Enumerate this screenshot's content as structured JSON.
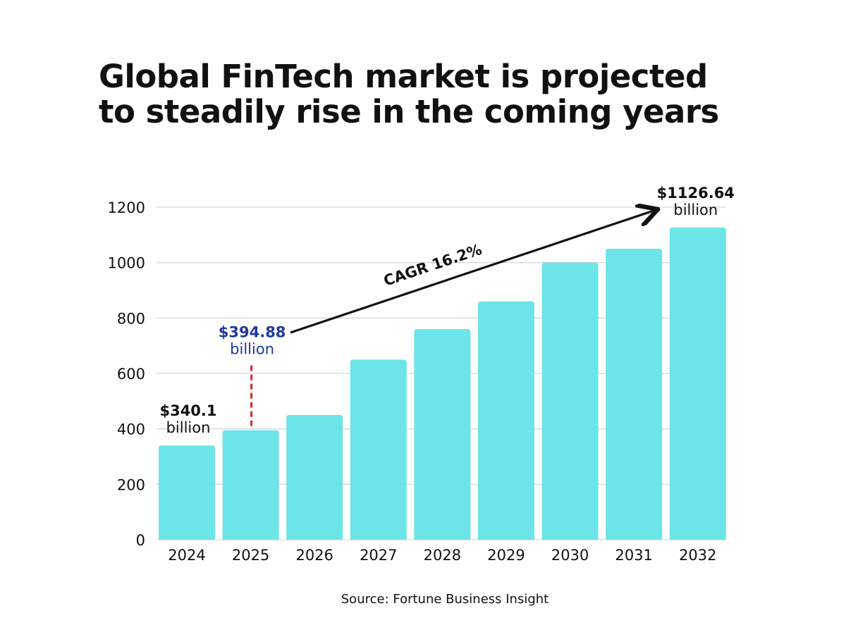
{
  "title_lines": [
    "Global FinTech market is projected",
    "to steadily rise in the coming years"
  ],
  "source": "Source: Fortune Business Insight",
  "chart_data": {
    "type": "bar",
    "title": "Global FinTech market is projected to steadily rise in the coming years",
    "xlabel": "",
    "ylabel": "",
    "categories": [
      "2024",
      "2025",
      "2026",
      "2027",
      "2028",
      "2029",
      "2030",
      "2031",
      "2032"
    ],
    "values": [
      340.1,
      394.88,
      450,
      650,
      760,
      860,
      1000,
      1050,
      1126.64
    ],
    "ylim": [
      0,
      1200
    ],
    "yticks": [
      0,
      200,
      400,
      600,
      800,
      1000,
      1200
    ],
    "grid": true,
    "bar_color": "#6ce4e8",
    "annotations": [
      {
        "category": "2024",
        "value_text": "$340.1",
        "unit_text": "billion",
        "color": "#111111"
      },
      {
        "category": "2025",
        "value_text": "$394.88",
        "unit_text": "billion",
        "color": "#1f3a9e",
        "leader": "dashed",
        "leader_color": "#d9262b"
      },
      {
        "category": "2032",
        "value_text": "$1126.64",
        "unit_text": "billion",
        "color": "#111111"
      }
    ],
    "trend_arrow": {
      "label": "CAGR 16.2%",
      "from": "2025",
      "to": "2032"
    }
  }
}
